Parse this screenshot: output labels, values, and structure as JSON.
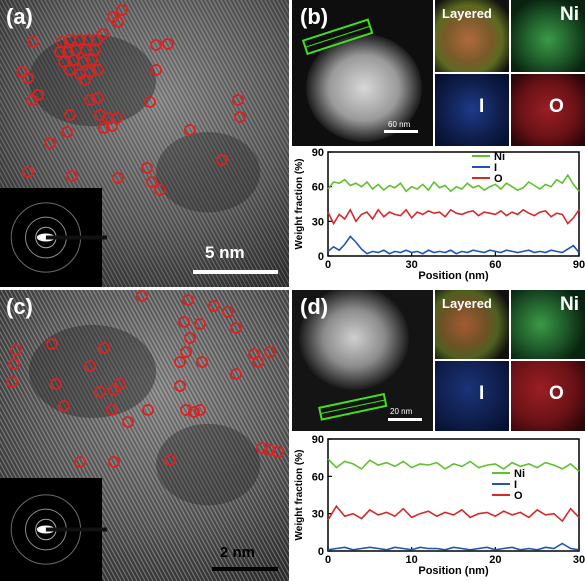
{
  "panels": {
    "a": {
      "label": "(a)",
      "scale": "5 nm"
    },
    "b": {
      "label": "(b)",
      "scale": "60 nm",
      "maps": [
        "Layered",
        "Ni",
        "I",
        "O"
      ]
    },
    "c": {
      "label": "(c)",
      "scale": "2 nm"
    },
    "d": {
      "label": "(d)",
      "scale": "20 nm",
      "maps": [
        "Layered",
        "Ni",
        "I",
        "O"
      ]
    }
  },
  "colors": {
    "Ni": "#5fc12f",
    "I": "#1f55b4",
    "O": "#d62a2a",
    "marker": "#e02020"
  },
  "chart_data": [
    {
      "type": "line",
      "xlabel": "Position (nm)",
      "ylabel": "Weight fraction (%)",
      "xlim": [
        0,
        90
      ],
      "ylim": [
        0,
        90
      ],
      "xticks": [
        0,
        30,
        60,
        90
      ],
      "yticks": [
        0,
        30,
        60,
        90
      ],
      "legend": "top-right",
      "series": [
        {
          "name": "Ni",
          "color": "#5fc12f",
          "x": [
            0,
            2,
            4,
            6,
            8,
            10,
            12,
            14,
            16,
            18,
            20,
            22,
            24,
            26,
            28,
            30,
            32,
            34,
            36,
            38,
            40,
            42,
            44,
            46,
            48,
            50,
            52,
            54,
            56,
            58,
            60,
            62,
            64,
            66,
            68,
            70,
            72,
            74,
            76,
            78,
            80,
            82,
            84,
            86,
            88,
            90
          ],
          "y": [
            58,
            64,
            63,
            66,
            61,
            63,
            60,
            64,
            58,
            62,
            57,
            61,
            59,
            63,
            56,
            60,
            58,
            62,
            57,
            64,
            59,
            61,
            56,
            60,
            58,
            63,
            59,
            61,
            57,
            60,
            62,
            58,
            63,
            60,
            57,
            59,
            64,
            61,
            58,
            62,
            60,
            66,
            63,
            70,
            62,
            56
          ]
        },
        {
          "name": "I",
          "color": "#1f55b4",
          "x": [
            0,
            2,
            4,
            6,
            8,
            10,
            12,
            14,
            16,
            18,
            20,
            22,
            24,
            26,
            28,
            30,
            32,
            34,
            36,
            38,
            40,
            42,
            44,
            46,
            48,
            50,
            52,
            54,
            56,
            58,
            60,
            62,
            64,
            66,
            68,
            70,
            72,
            74,
            76,
            78,
            80,
            82,
            84,
            86,
            88,
            90
          ],
          "y": [
            4,
            8,
            5,
            10,
            17,
            12,
            6,
            2,
            4,
            3,
            5,
            2,
            4,
            3,
            5,
            3,
            4,
            2,
            5,
            3,
            4,
            3,
            5,
            2,
            4,
            3,
            5,
            4,
            3,
            5,
            4,
            3,
            5,
            4,
            3,
            4,
            5,
            3,
            4,
            3,
            5,
            4,
            3,
            6,
            9,
            3
          ]
        },
        {
          "name": "O",
          "color": "#d62a2a",
          "x": [
            0,
            2,
            4,
            6,
            8,
            10,
            12,
            14,
            16,
            18,
            20,
            22,
            24,
            26,
            28,
            30,
            32,
            34,
            36,
            38,
            40,
            42,
            44,
            46,
            48,
            50,
            52,
            54,
            56,
            58,
            60,
            62,
            64,
            66,
            68,
            70,
            72,
            74,
            76,
            78,
            80,
            82,
            84,
            86,
            88,
            90
          ],
          "y": [
            38,
            28,
            36,
            32,
            40,
            30,
            36,
            38,
            32,
            40,
            34,
            38,
            36,
            35,
            40,
            33,
            38,
            36,
            39,
            37,
            38,
            34,
            40,
            37,
            36,
            38,
            39,
            35,
            38,
            37,
            36,
            39,
            35,
            38,
            36,
            40,
            37,
            35,
            38,
            39,
            34,
            37,
            36,
            28,
            33,
            40
          ]
        }
      ]
    },
    {
      "type": "line",
      "xlabel": "Position (nm)",
      "ylabel": "Weight fraction (%)",
      "xlim": [
        0,
        30
      ],
      "ylim": [
        0,
        90
      ],
      "xticks": [
        0,
        10,
        20,
        30
      ],
      "yticks": [
        0,
        30,
        60,
        90
      ],
      "legend": "right",
      "series": [
        {
          "name": "Ni",
          "color": "#5fc12f",
          "x": [
            0,
            1,
            2,
            3,
            4,
            5,
            6,
            7,
            8,
            9,
            10,
            11,
            12,
            13,
            14,
            15,
            16,
            17,
            18,
            19,
            20,
            21,
            22,
            23,
            24,
            25,
            26,
            27,
            28,
            29,
            30
          ],
          "y": [
            74,
            67,
            72,
            70,
            66,
            73,
            69,
            71,
            68,
            72,
            67,
            70,
            69,
            71,
            66,
            70,
            68,
            72,
            67,
            69,
            70,
            66,
            71,
            68,
            70,
            67,
            71,
            69,
            66,
            70,
            64
          ]
        },
        {
          "name": "I",
          "color": "#1f55b4",
          "x": [
            0,
            1,
            2,
            3,
            4,
            5,
            6,
            7,
            8,
            9,
            10,
            11,
            12,
            13,
            14,
            15,
            16,
            17,
            18,
            19,
            20,
            21,
            22,
            23,
            24,
            25,
            26,
            27,
            28,
            29,
            30
          ],
          "y": [
            1,
            2,
            3,
            1,
            2,
            3,
            2,
            1,
            3,
            2,
            1,
            3,
            2,
            2,
            1,
            3,
            2,
            1,
            2,
            3,
            1,
            2,
            3,
            1,
            2,
            1,
            3,
            2,
            6,
            2,
            1
          ]
        },
        {
          "name": "O",
          "color": "#d62a2a",
          "x": [
            0,
            1,
            2,
            3,
            4,
            5,
            6,
            7,
            8,
            9,
            10,
            11,
            12,
            13,
            14,
            15,
            16,
            17,
            18,
            19,
            20,
            21,
            22,
            23,
            24,
            25,
            26,
            27,
            28,
            29,
            30
          ],
          "y": [
            25,
            36,
            28,
            30,
            26,
            33,
            29,
            31,
            28,
            34,
            27,
            30,
            32,
            28,
            31,
            29,
            33,
            27,
            30,
            31,
            28,
            32,
            29,
            31,
            27,
            33,
            29,
            30,
            24,
            34,
            27
          ]
        }
      ]
    }
  ]
}
